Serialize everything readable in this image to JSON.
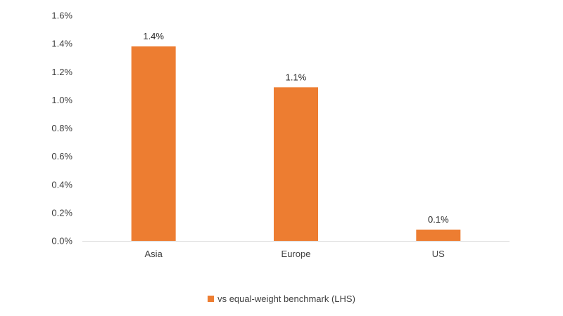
{
  "chart_data": {
    "type": "bar",
    "categories": [
      "Asia",
      "Europe",
      "US"
    ],
    "series": [
      {
        "name": "vs equal-weight benchmark (LHS)",
        "values": [
          1.38,
          1.09,
          0.08
        ],
        "labels": [
          "1.4%",
          "1.1%",
          "0.1%"
        ]
      }
    ],
    "ylim": [
      0,
      1.6
    ],
    "yticks": [
      0,
      0.2,
      0.4,
      0.6,
      0.8,
      1.0,
      1.2,
      1.4,
      1.6
    ],
    "ytick_labels": [
      "0.0%",
      "0.2%",
      "0.4%",
      "0.6%",
      "0.8%",
      "1.0%",
      "1.2%",
      "1.4%",
      "1.6%"
    ],
    "grid": false,
    "legend_position": "bottom",
    "colors": {
      "bar": "#ED7D31",
      "axis": "#D9D9D9"
    }
  }
}
